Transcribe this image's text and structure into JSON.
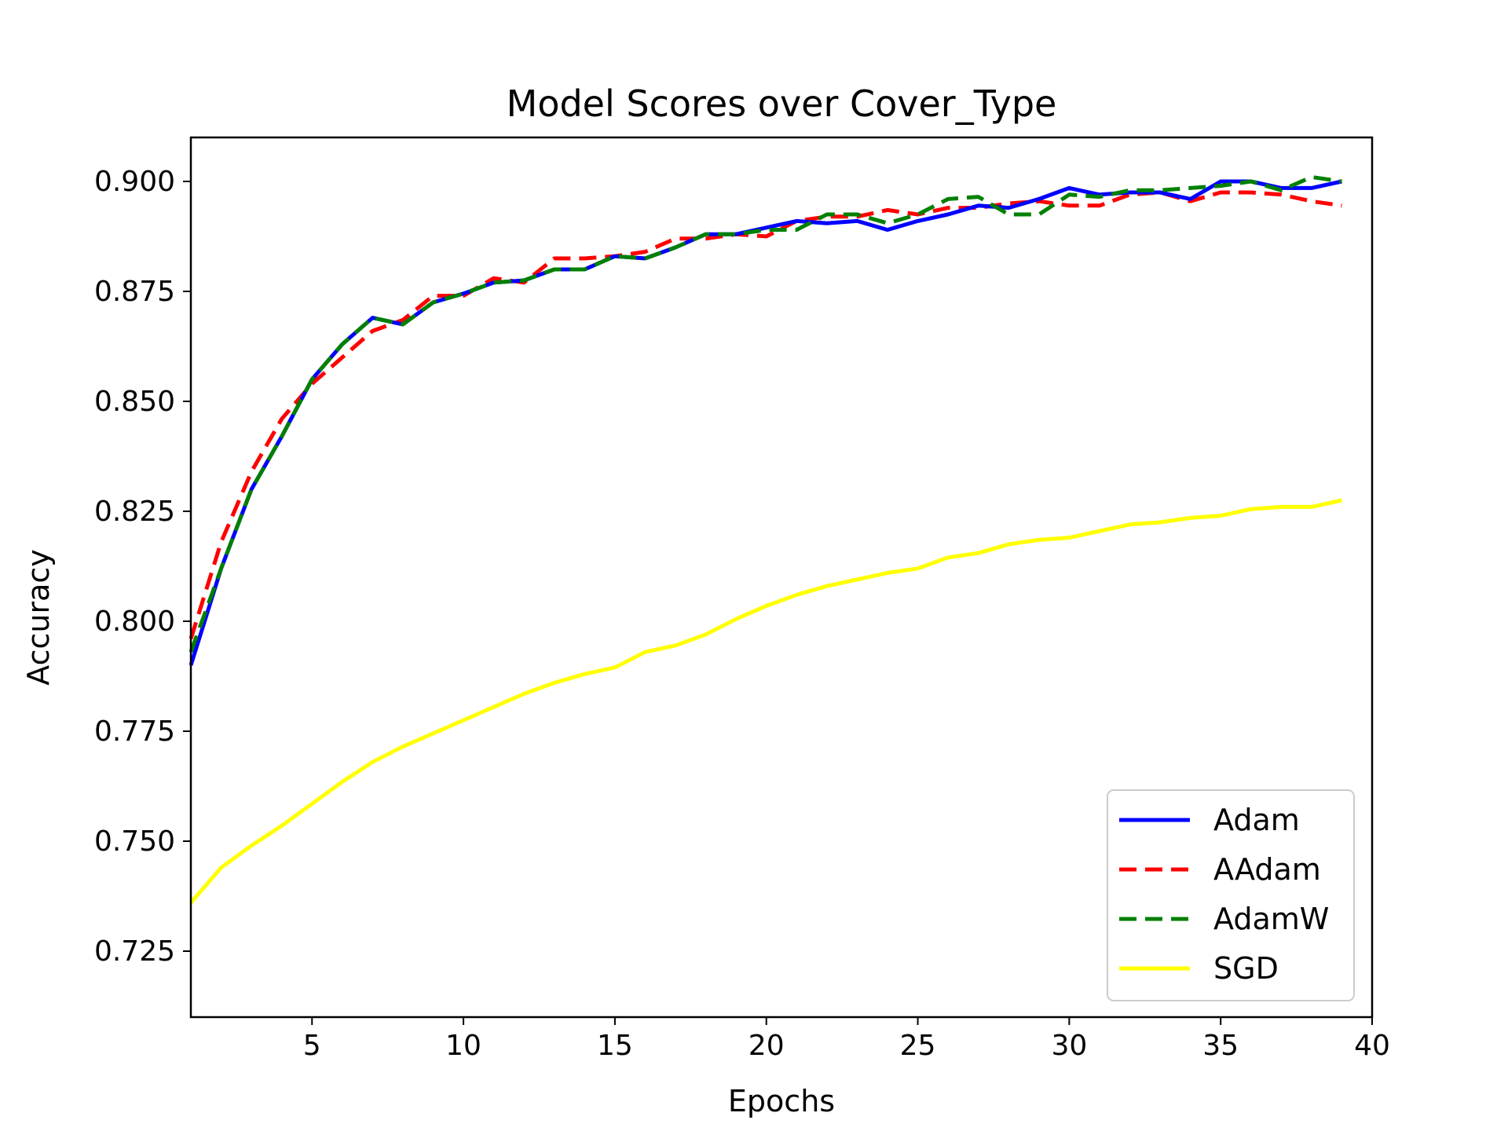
{
  "chart_data": {
    "type": "line",
    "title": "Model Scores over Cover_Type",
    "xlabel": "Epochs",
    "ylabel": "Accuracy",
    "xlim": [
      1,
      40
    ],
    "ylim": [
      0.71,
      0.91
    ],
    "xticks": [
      5,
      10,
      15,
      20,
      25,
      30,
      35,
      40
    ],
    "yticks": [
      0.725,
      0.75,
      0.775,
      0.8,
      0.825,
      0.85,
      0.875,
      0.9
    ],
    "ytick_labels": [
      "0.725",
      "0.750",
      "0.775",
      "0.800",
      "0.825",
      "0.850",
      "0.875",
      "0.900"
    ],
    "grid": false,
    "legend_position": "lower-right",
    "x": [
      1,
      2,
      3,
      4,
      5,
      6,
      7,
      8,
      9,
      10,
      11,
      12,
      13,
      14,
      15,
      16,
      17,
      18,
      19,
      20,
      21,
      22,
      23,
      24,
      25,
      26,
      27,
      28,
      29,
      30,
      31,
      32,
      33,
      34,
      35,
      36,
      37,
      38,
      39
    ],
    "series": [
      {
        "name": "Adam",
        "color": "#0000ff",
        "style": "solid",
        "values": [
          0.79,
          0.812,
          0.83,
          0.842,
          0.855,
          0.863,
          0.869,
          0.8675,
          0.8725,
          0.8745,
          0.877,
          0.8775,
          0.88,
          0.88,
          0.883,
          0.8825,
          0.885,
          0.888,
          0.888,
          0.8895,
          0.891,
          0.8905,
          0.891,
          0.889,
          0.891,
          0.8925,
          0.8945,
          0.894,
          0.896,
          0.8985,
          0.897,
          0.8975,
          0.8975,
          0.896,
          0.9,
          0.9,
          0.8985,
          0.8985,
          0.9
        ]
      },
      {
        "name": "AAdam",
        "color": "#ff0000",
        "style": "dashed",
        "values": [
          0.796,
          0.818,
          0.834,
          0.846,
          0.854,
          0.86,
          0.866,
          0.8685,
          0.874,
          0.874,
          0.878,
          0.877,
          0.8825,
          0.8825,
          0.883,
          0.884,
          0.887,
          0.887,
          0.888,
          0.8875,
          0.891,
          0.892,
          0.892,
          0.8935,
          0.8925,
          0.894,
          0.894,
          0.895,
          0.8955,
          0.8945,
          0.8945,
          0.897,
          0.8975,
          0.8955,
          0.8975,
          0.8975,
          0.897,
          0.8955,
          0.8945
        ]
      },
      {
        "name": "AdamW",
        "color": "#008000",
        "style": "dashed",
        "values": [
          0.793,
          0.812,
          0.83,
          0.842,
          0.855,
          0.863,
          0.869,
          0.8675,
          0.8725,
          0.8745,
          0.877,
          0.8775,
          0.88,
          0.88,
          0.883,
          0.8825,
          0.885,
          0.888,
          0.888,
          0.889,
          0.889,
          0.8925,
          0.8925,
          0.8905,
          0.8925,
          0.896,
          0.8965,
          0.8925,
          0.8925,
          0.897,
          0.8965,
          0.898,
          0.898,
          0.8985,
          0.899,
          0.9,
          0.898,
          0.901,
          0.9
        ]
      },
      {
        "name": "SGD",
        "color": "#ffff00",
        "style": "solid",
        "values": [
          0.736,
          0.744,
          0.749,
          0.7535,
          0.7585,
          0.7635,
          0.768,
          0.7715,
          0.7745,
          0.7775,
          0.7805,
          0.7835,
          0.786,
          0.788,
          0.7895,
          0.793,
          0.7945,
          0.797,
          0.8005,
          0.8035,
          0.806,
          0.808,
          0.8095,
          0.811,
          0.812,
          0.8145,
          0.8155,
          0.8175,
          0.8185,
          0.819,
          0.8205,
          0.822,
          0.8225,
          0.8235,
          0.824,
          0.8255,
          0.826,
          0.826,
          0.8275
        ]
      }
    ]
  }
}
